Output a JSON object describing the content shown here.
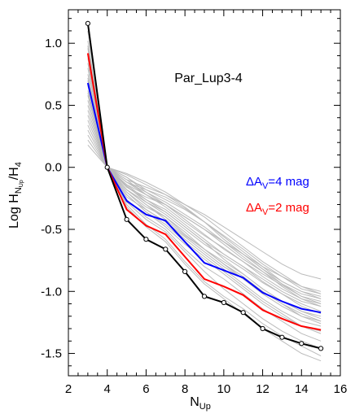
{
  "chart_data": {
    "type": "line",
    "annotation": "Par_Lup3-4",
    "xlabel": {
      "main": "N",
      "sub": "Up"
    },
    "ylabel": {
      "main": "Log H",
      "sub": "N",
      "subsub": "Up",
      "tail": "/H",
      "tailsub": "4"
    },
    "xlim": [
      2,
      16
    ],
    "ylim": [
      -1.68,
      1.27
    ],
    "xticks": [
      2,
      4,
      6,
      8,
      10,
      12,
      14,
      16
    ],
    "yticks": [
      -1.5,
      -1.0,
      -0.5,
      0.0,
      0.5,
      1.0
    ],
    "xtick_labels": [
      "2",
      "4",
      "6",
      "8",
      "10",
      "12",
      "14",
      "16"
    ],
    "ytick_labels": [
      "-1.5",
      "-1.0",
      "-0.5",
      "0.0",
      "0.5",
      "1.0"
    ],
    "x": [
      3,
      4,
      5,
      6,
      7,
      8,
      9,
      10,
      11,
      12,
      13,
      14,
      15
    ],
    "legend": [
      {
        "prefix": "ΔA",
        "sub": "V",
        "suffix": "=4 mag",
        "color": "#0000ff"
      },
      {
        "prefix": "ΔA",
        "sub": "V",
        "suffix": "=2 mag",
        "color": "#ff0000"
      }
    ],
    "series": [
      {
        "values": [
          1.16,
          0.0,
          -0.42,
          -0.58,
          -0.66,
          -0.84,
          -1.04,
          -1.09,
          -1.17,
          -1.3,
          -1.37,
          -1.42,
          -1.46
        ],
        "color": "#000000",
        "markers": true
      },
      {
        "values": [
          0.92,
          0.0,
          -0.34,
          -0.47,
          -0.54,
          -0.72,
          -0.9,
          -0.96,
          -1.03,
          -1.15,
          -1.22,
          -1.28,
          -1.31
        ],
        "color": "#ff0000",
        "markers": false
      },
      {
        "values": [
          0.68,
          0.0,
          -0.27,
          -0.38,
          -0.43,
          -0.6,
          -0.77,
          -0.83,
          -0.89,
          -1.01,
          -1.08,
          -1.14,
          -1.17
        ],
        "color": "#0000ff",
        "markers": false
      }
    ],
    "background_series": [
      [
        1.18,
        0.0,
        -0.12,
        -0.2,
        -0.28,
        -0.38,
        -0.48,
        -0.6,
        -0.72,
        -0.84,
        -0.96,
        -1.06,
        -1.12
      ],
      [
        1.1,
        0.0,
        -0.15,
        -0.28,
        -0.38,
        -0.5,
        -0.62,
        -0.72,
        -0.82,
        -0.93,
        -1.02,
        -1.1,
        -1.16
      ],
      [
        1.02,
        0.0,
        -0.18,
        -0.3,
        -0.42,
        -0.55,
        -0.66,
        -0.78,
        -0.9,
        -1.0,
        -1.1,
        -1.18,
        -1.24
      ],
      [
        0.96,
        0.0,
        -0.08,
        -0.18,
        -0.26,
        -0.34,
        -0.44,
        -0.55,
        -0.66,
        -0.78,
        -0.88,
        -0.98,
        -1.02
      ],
      [
        0.9,
        0.0,
        -0.22,
        -0.36,
        -0.46,
        -0.6,
        -0.72,
        -0.84,
        -0.96,
        -1.08,
        -1.18,
        -1.28,
        -1.34
      ],
      [
        0.84,
        0.0,
        -0.1,
        -0.22,
        -0.32,
        -0.44,
        -0.55,
        -0.65,
        -0.76,
        -0.86,
        -0.95,
        -1.04,
        -1.1
      ],
      [
        0.8,
        0.0,
        -0.26,
        -0.4,
        -0.5,
        -0.66,
        -0.8,
        -0.9,
        -1.02,
        -1.14,
        -1.24,
        -1.34,
        -1.4
      ],
      [
        0.75,
        0.0,
        -0.14,
        -0.26,
        -0.34,
        -0.46,
        -0.58,
        -0.7,
        -0.8,
        -0.92,
        -1.02,
        -1.12,
        -1.18
      ],
      [
        0.7,
        0.0,
        -0.05,
        -0.12,
        -0.2,
        -0.3,
        -0.4,
        -0.52,
        -0.64,
        -0.76,
        -0.86,
        -0.96,
        -1.02
      ],
      [
        0.66,
        0.0,
        -0.2,
        -0.32,
        -0.4,
        -0.52,
        -0.66,
        -0.76,
        -0.86,
        -0.98,
        -1.08,
        -1.16,
        -1.22
      ],
      [
        0.62,
        0.0,
        -0.3,
        -0.46,
        -0.58,
        -0.76,
        -0.92,
        -1.04,
        -1.14,
        -1.26,
        -1.36,
        -1.44,
        -1.52
      ],
      [
        0.58,
        0.0,
        -0.16,
        -0.24,
        -0.3,
        -0.4,
        -0.5,
        -0.62,
        -0.74,
        -0.84,
        -0.94,
        -1.02,
        -1.06
      ],
      [
        0.54,
        0.0,
        -0.12,
        -0.18,
        -0.24,
        -0.33,
        -0.44,
        -0.56,
        -0.68,
        -0.8,
        -0.92,
        -1.0,
        -1.06
      ],
      [
        0.5,
        0.0,
        -0.24,
        -0.34,
        -0.44,
        -0.56,
        -0.68,
        -0.8,
        -0.9,
        -1.02,
        -1.12,
        -1.2,
        -1.26
      ],
      [
        0.46,
        0.0,
        -0.18,
        -0.28,
        -0.36,
        -0.48,
        -0.6,
        -0.74,
        -0.86,
        -0.98,
        -1.08,
        -1.16,
        -1.2
      ],
      [
        0.42,
        0.0,
        -0.06,
        -0.14,
        -0.22,
        -0.32,
        -0.44,
        -0.58,
        -0.7,
        -0.82,
        -0.94,
        -1.04,
        -1.08
      ],
      [
        0.38,
        0.0,
        -0.28,
        -0.42,
        -0.52,
        -0.68,
        -0.84,
        -0.98,
        -1.1,
        -1.22,
        -1.32,
        -1.4,
        -1.46
      ],
      [
        0.34,
        0.0,
        -0.1,
        -0.16,
        -0.22,
        -0.3,
        -0.38,
        -0.48,
        -0.58,
        -0.68,
        -0.78,
        -0.86,
        -0.9
      ],
      [
        0.3,
        0.0,
        -0.22,
        -0.36,
        -0.48,
        -0.62,
        -0.74,
        -0.86,
        -0.98,
        -1.1,
        -1.2,
        -1.28,
        -1.32
      ],
      [
        0.26,
        0.0,
        -0.14,
        -0.22,
        -0.3,
        -0.42,
        -0.54,
        -0.66,
        -0.76,
        -0.88,
        -0.98,
        -1.06,
        -1.1
      ],
      [
        0.22,
        0.0,
        -0.18,
        -0.3,
        -0.4,
        -0.54,
        -0.66,
        -0.78,
        -0.88,
        -1.0,
        -1.1,
        -1.2,
        -1.24
      ],
      [
        0.18,
        0.0,
        -0.08,
        -0.2,
        -0.3,
        -0.4,
        -0.5,
        -0.6,
        -0.7,
        -0.82,
        -0.92,
        -1.0,
        -1.04
      ],
      [
        0.98,
        0.0,
        -0.2,
        -0.34,
        -0.44,
        -0.58,
        -0.7,
        -0.82,
        -0.94,
        -1.06,
        -1.16,
        -1.24,
        -1.28
      ],
      [
        0.88,
        0.0,
        -0.16,
        -0.26,
        -0.36,
        -0.48,
        -0.6,
        -0.7,
        -0.8,
        -0.9,
        -1.0,
        -1.08,
        -1.12
      ],
      [
        0.72,
        0.0,
        -0.32,
        -0.48,
        -0.6,
        -0.78,
        -0.94,
        -1.06,
        -1.18,
        -1.3,
        -1.4,
        -1.5,
        -1.56
      ],
      [
        0.6,
        0.0,
        -0.12,
        -0.22,
        -0.3,
        -0.4,
        -0.5,
        -0.6,
        -0.7,
        -0.8,
        -0.88,
        -0.96,
        -1.0
      ]
    ]
  }
}
